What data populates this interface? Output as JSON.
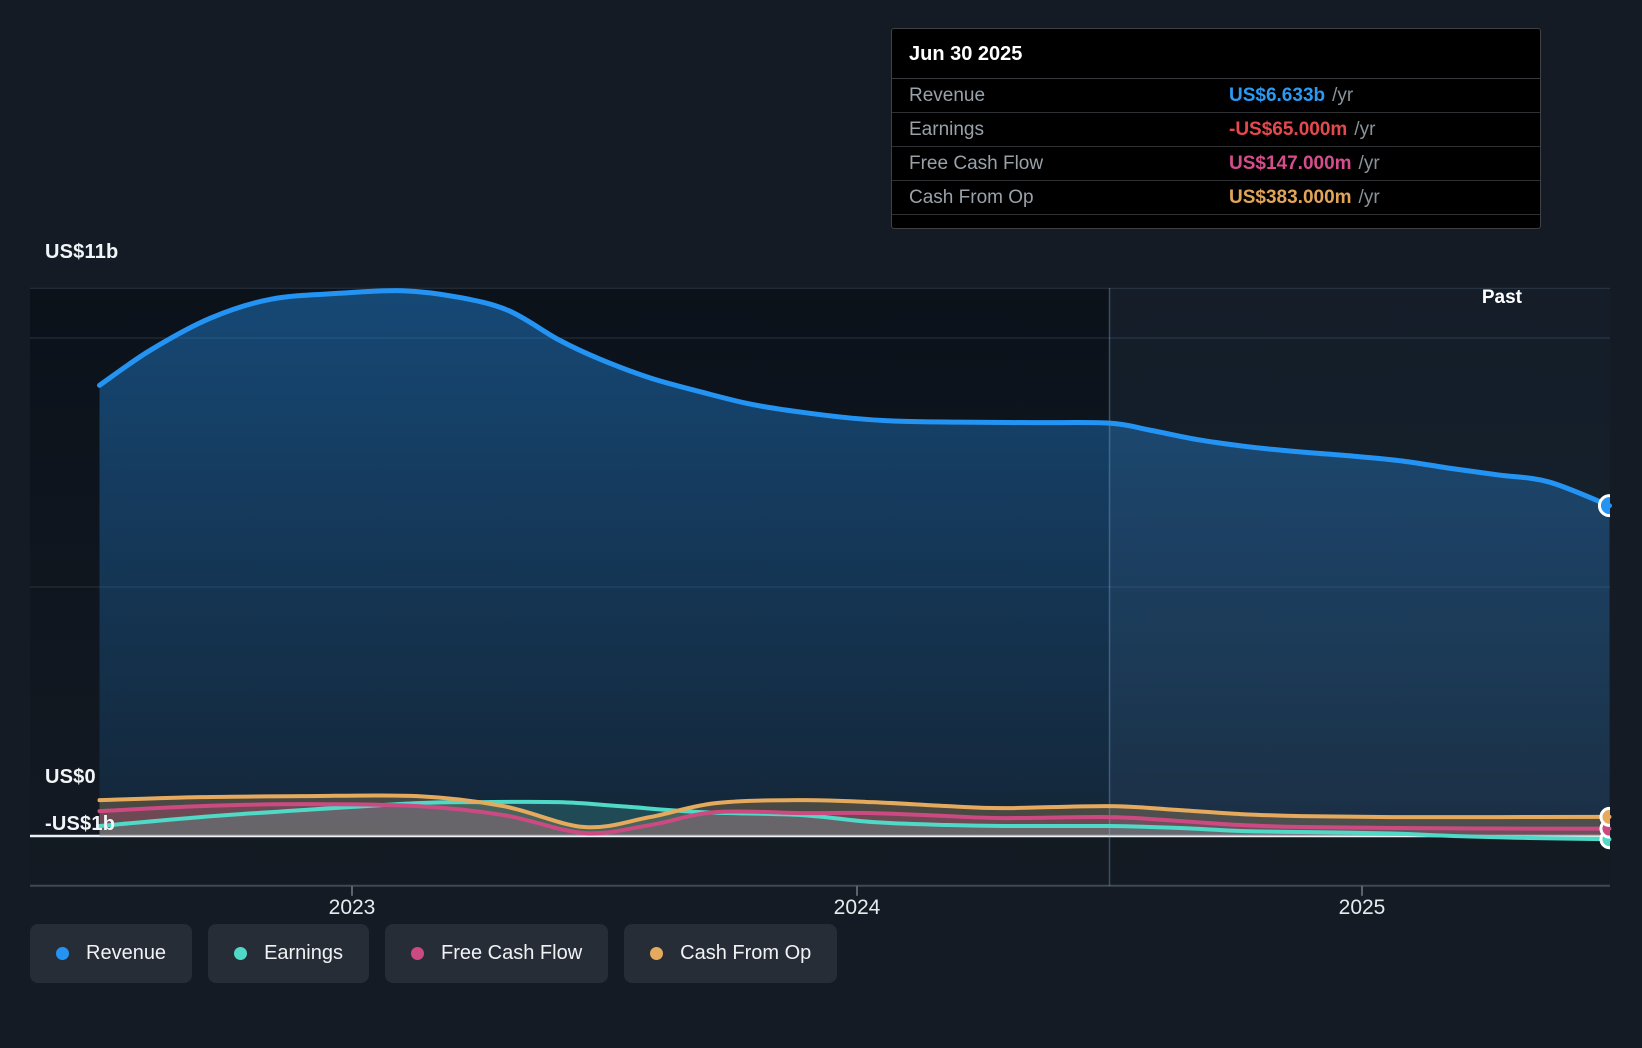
{
  "tooltip": {
    "date": "Jun 30 2025",
    "rows": [
      {
        "label": "Revenue",
        "value": "US$6.633b",
        "suffix": "/yr",
        "color": "#2b9af3"
      },
      {
        "label": "Earnings",
        "value": "-US$65.000m",
        "suffix": "/yr",
        "color": "#e5484d"
      },
      {
        "label": "Free Cash Flow",
        "value": "US$147.000m",
        "suffix": "/yr",
        "color": "#d44d8c"
      },
      {
        "label": "Cash From Op",
        "value": "US$383.000m",
        "suffix": "/yr",
        "color": "#e2a458"
      }
    ]
  },
  "axis": {
    "y_labels": [
      {
        "text": "US$11b",
        "value": 11
      },
      {
        "text": "US$0",
        "value": 0
      },
      {
        "text": "-US$1b",
        "value": -1
      }
    ],
    "x_labels": [
      {
        "text": "2023",
        "year": 2023
      },
      {
        "text": "2024",
        "year": 2024
      },
      {
        "text": "2025",
        "year": 2025
      }
    ]
  },
  "past_label": "Past",
  "legend": [
    {
      "label": "Revenue",
      "color": "#2494f4"
    },
    {
      "label": "Earnings",
      "color": "#4fd9c6"
    },
    {
      "label": "Free Cash Flow",
      "color": "#cb4a81"
    },
    {
      "label": "Cash From Op",
      "color": "#e5aa5d"
    }
  ],
  "chart_data": {
    "type": "area",
    "x_unit": "decimal_year",
    "x_range": [
      2022.5,
      2025.49
    ],
    "ylim": [
      -1,
      11.5
    ],
    "y_unit": "US$ billions",
    "y_gridlines": [
      11,
      10,
      5,
      0,
      -1
    ],
    "x_ticks": [
      2023,
      2024,
      2025
    ],
    "divider_year": 2024.5,
    "legend_position": "bottom-left",
    "past_region": {
      "from_year": 2024.5,
      "to_year": 2025.49,
      "label": "Past"
    },
    "series": [
      {
        "name": "Revenue",
        "color": "#2494f4",
        "end_value_label": "US$6.633b/yr",
        "points": [
          [
            2022.5,
            9.05
          ],
          [
            2022.6,
            9.75
          ],
          [
            2022.72,
            10.4
          ],
          [
            2022.84,
            10.78
          ],
          [
            2022.98,
            10.9
          ],
          [
            2023.1,
            10.95
          ],
          [
            2023.21,
            10.82
          ],
          [
            2023.31,
            10.55
          ],
          [
            2023.41,
            9.96
          ],
          [
            2023.49,
            9.58
          ],
          [
            2023.59,
            9.2
          ],
          [
            2023.69,
            8.92
          ],
          [
            2023.79,
            8.67
          ],
          [
            2023.89,
            8.51
          ],
          [
            2023.99,
            8.39
          ],
          [
            2024.08,
            8.33
          ],
          [
            2024.2,
            8.31
          ],
          [
            2024.35,
            8.3
          ],
          [
            2024.5,
            8.29
          ],
          [
            2024.58,
            8.15
          ],
          [
            2024.68,
            7.95
          ],
          [
            2024.78,
            7.81
          ],
          [
            2024.88,
            7.71
          ],
          [
            2024.98,
            7.63
          ],
          [
            2025.08,
            7.53
          ],
          [
            2025.17,
            7.39
          ],
          [
            2025.27,
            7.25
          ],
          [
            2025.37,
            7.11
          ],
          [
            2025.49,
            6.633
          ]
        ]
      },
      {
        "name": "Cash From Op",
        "color": "#e5aa5d",
        "end_value_label": "US$383.000m/yr",
        "points": [
          [
            2022.5,
            0.72
          ],
          [
            2022.7,
            0.78
          ],
          [
            2022.9,
            0.8
          ],
          [
            2023.13,
            0.8
          ],
          [
            2023.3,
            0.6
          ],
          [
            2023.46,
            0.18
          ],
          [
            2023.59,
            0.38
          ],
          [
            2023.72,
            0.66
          ],
          [
            2023.89,
            0.72
          ],
          [
            2024.03,
            0.68
          ],
          [
            2024.18,
            0.6
          ],
          [
            2024.29,
            0.56
          ],
          [
            2024.5,
            0.6
          ],
          [
            2024.64,
            0.52
          ],
          [
            2024.76,
            0.44
          ],
          [
            2024.88,
            0.4
          ],
          [
            2025.06,
            0.38
          ],
          [
            2025.27,
            0.38
          ],
          [
            2025.49,
            0.383
          ]
        ]
      },
      {
        "name": "Free Cash Flow",
        "color": "#cb4a81",
        "end_value_label": "US$147.000m/yr",
        "points": [
          [
            2022.5,
            0.5
          ],
          [
            2022.7,
            0.6
          ],
          [
            2022.9,
            0.64
          ],
          [
            2023.13,
            0.6
          ],
          [
            2023.3,
            0.42
          ],
          [
            2023.46,
            0.06
          ],
          [
            2023.59,
            0.22
          ],
          [
            2023.72,
            0.48
          ],
          [
            2023.89,
            0.46
          ],
          [
            2024.03,
            0.46
          ],
          [
            2024.18,
            0.4
          ],
          [
            2024.29,
            0.36
          ],
          [
            2024.5,
            0.38
          ],
          [
            2024.64,
            0.3
          ],
          [
            2024.76,
            0.22
          ],
          [
            2024.88,
            0.18
          ],
          [
            2025.06,
            0.16
          ],
          [
            2025.27,
            0.15
          ],
          [
            2025.49,
            0.147
          ]
        ]
      },
      {
        "name": "Earnings",
        "color": "#4fd9c6",
        "end_value_label": "-US$65.000m/yr",
        "points": [
          [
            2022.5,
            0.2
          ],
          [
            2022.7,
            0.38
          ],
          [
            2022.9,
            0.52
          ],
          [
            2023.13,
            0.66
          ],
          [
            2023.25,
            0.68
          ],
          [
            2023.41,
            0.68
          ],
          [
            2023.53,
            0.6
          ],
          [
            2023.69,
            0.48
          ],
          [
            2023.89,
            0.42
          ],
          [
            2024.03,
            0.28
          ],
          [
            2024.18,
            0.22
          ],
          [
            2024.29,
            0.2
          ],
          [
            2024.5,
            0.2
          ],
          [
            2024.64,
            0.16
          ],
          [
            2024.76,
            0.1
          ],
          [
            2024.88,
            0.08
          ],
          [
            2025.06,
            0.05
          ],
          [
            2025.18,
            0.0
          ],
          [
            2025.33,
            -0.04
          ],
          [
            2025.49,
            -0.065
          ]
        ]
      }
    ]
  }
}
